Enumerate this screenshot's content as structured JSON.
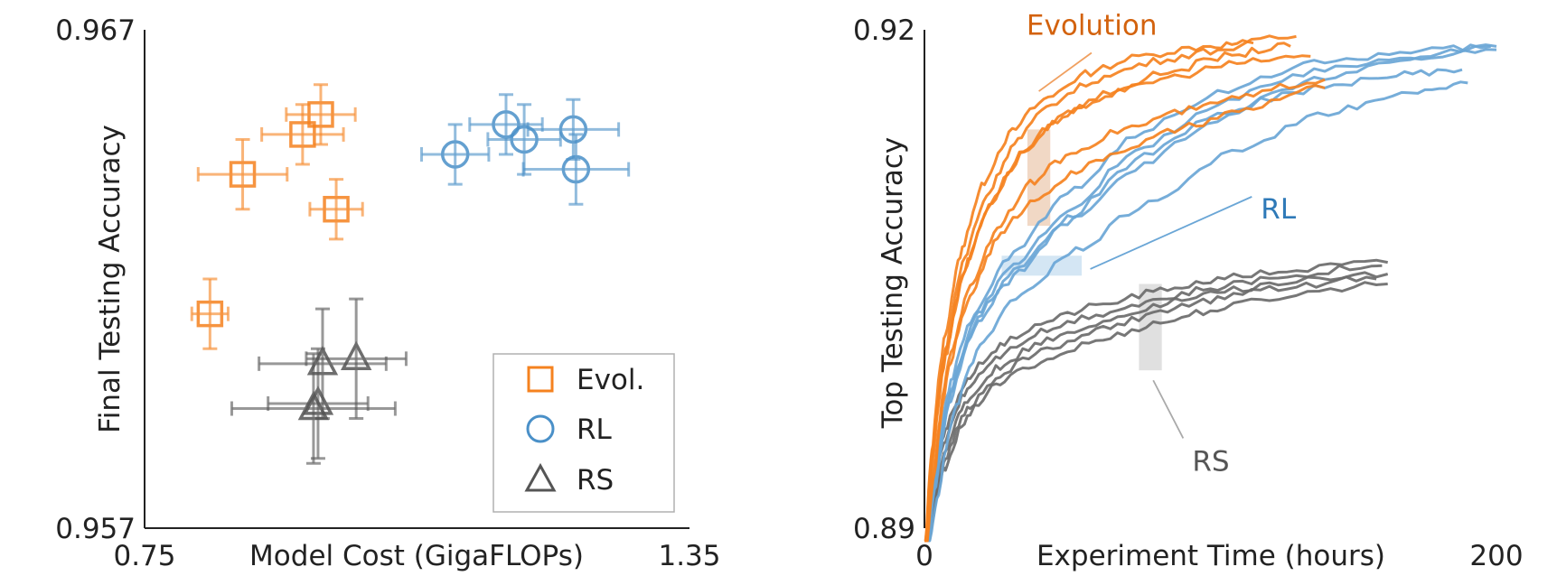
{
  "chart_data": [
    {
      "type": "scatter",
      "xlabel": "Model Cost (GigaFLOPs)",
      "ylabel": "Final Testing Accuracy",
      "xlim": [
        0.75,
        1.35
      ],
      "ylim": [
        0.957,
        0.967
      ],
      "xtick_labels": [
        "0.75",
        "1.35"
      ],
      "ytick_labels": [
        "0.957",
        "0.967"
      ],
      "grid": false,
      "legend": {
        "position": "bottom-right",
        "entries": [
          {
            "label": "Evol.",
            "marker": "square",
            "color": "#f5821f"
          },
          {
            "label": "RL",
            "marker": "circle",
            "color": "#4a90c8"
          },
          {
            "label": "RS",
            "marker": "triangle",
            "color": "#555555"
          }
        ]
      },
      "series": [
        {
          "name": "Evol.",
          "color": "#f5821f",
          "marker": "square",
          "points": [
            {
              "x": 0.822,
              "y": 0.9613,
              "xerr": 0.02,
              "yerr": 0.0007
            },
            {
              "x": 0.858,
              "y": 0.9641,
              "xerr": 0.049,
              "yerr": 0.0007
            },
            {
              "x": 0.924,
              "y": 0.9649,
              "xerr": 0.045,
              "yerr": 0.0006
            },
            {
              "x": 0.944,
              "y": 0.9653,
              "xerr": 0.038,
              "yerr": 0.0006
            },
            {
              "x": 0.961,
              "y": 0.9634,
              "xerr": 0.029,
              "yerr": 0.0006
            }
          ]
        },
        {
          "name": "RL",
          "color": "#4a90c8",
          "marker": "circle",
          "points": [
            {
              "x": 1.092,
              "y": 0.9645,
              "xerr": 0.037,
              "yerr": 0.0006
            },
            {
              "x": 1.148,
              "y": 0.9651,
              "xerr": 0.04,
              "yerr": 0.0006
            },
            {
              "x": 1.168,
              "y": 0.9648,
              "xerr": 0.04,
              "yerr": 0.0007
            },
            {
              "x": 1.222,
              "y": 0.965,
              "xerr": 0.05,
              "yerr": 0.0006
            },
            {
              "x": 1.225,
              "y": 0.9642,
              "xerr": 0.058,
              "yerr": 0.0007
            }
          ]
        },
        {
          "name": "RS",
          "color": "#555555",
          "marker": "triangle",
          "points": [
            {
              "x": 0.946,
              "y": 0.9603,
              "xerr": 0.07,
              "yerr": 0.0011
            },
            {
              "x": 0.983,
              "y": 0.9604,
              "xerr": 0.055,
              "yerr": 0.0012
            },
            {
              "x": 0.936,
              "y": 0.9594,
              "xerr": 0.09,
              "yerr": 0.0011
            },
            {
              "x": 0.941,
              "y": 0.9595,
              "xerr": 0.055,
              "yerr": 0.0011
            }
          ]
        }
      ]
    },
    {
      "type": "line",
      "xlabel": "Experiment Time (hours)",
      "ylabel": "Top Testing Accuracy",
      "xlim": [
        0,
        200
      ],
      "ylim": [
        0.89,
        0.92
      ],
      "xtick_labels": [
        "0",
        "200"
      ],
      "ytick_labels": [
        "0.89",
        "0.92"
      ],
      "grid": false,
      "annotations": [
        {
          "text": "Evolution",
          "color": "#d3620d",
          "x": 42,
          "y": 0.9197,
          "line_to": {
            "x": 40,
            "y": 0.9163
          },
          "band": {
            "x": [
              36,
              44
            ],
            "y": [
              0.9082,
              0.914
            ]
          },
          "band_color": "#f0d4bf"
        },
        {
          "text": "RL",
          "color": "#2f7ab8",
          "x": 117,
          "y": 0.9093,
          "line_to": {
            "x": 58,
            "y": 0.9056
          },
          "band": {
            "x": [
              27,
              55
            ],
            "y": [
              0.9052,
              0.9064
            ]
          },
          "band_color": "#cfe3f3"
        },
        {
          "text": "RS",
          "color": "#555555",
          "x": 93,
          "y": 0.894,
          "line_to": {
            "x": 80,
            "y": 0.8989
          },
          "band": {
            "x": [
              75,
              83
            ],
            "y": [
              0.8995,
              0.9047
            ]
          },
          "band_color": "#dddddd"
        }
      ],
      "series": [
        {
          "name": "",
          "group": "Evolution",
          "color": "#f5821f",
          "points": [
            [
              0,
              0.887
            ],
            [
              3,
              0.895
            ],
            [
              8,
              0.902
            ],
            [
              14,
              0.907
            ],
            [
              22,
              0.911
            ],
            [
              32,
              0.914
            ],
            [
              45,
              0.916
            ],
            [
              60,
              0.9175
            ],
            [
              80,
              0.9185
            ],
            [
              100,
              0.919
            ],
            [
              115,
              0.9192
            ]
          ]
        },
        {
          "name": "",
          "group": "Evolution",
          "color": "#f5821f",
          "points": [
            [
              0,
              0.8865
            ],
            [
              3,
              0.8945
            ],
            [
              8,
              0.901
            ],
            [
              15,
              0.9065
            ],
            [
              24,
              0.9105
            ],
            [
              34,
              0.9135
            ],
            [
              48,
              0.9158
            ],
            [
              65,
              0.9172
            ],
            [
              85,
              0.9182
            ],
            [
              105,
              0.9188
            ],
            [
              130,
              0.9196
            ]
          ]
        },
        {
          "name": "",
          "group": "Evolution",
          "color": "#f5821f",
          "points": [
            [
              0,
              0.886
            ],
            [
              3,
              0.894
            ],
            [
              8,
              0.9005
            ],
            [
              15,
              0.9058
            ],
            [
              25,
              0.9098
            ],
            [
              36,
              0.9128
            ],
            [
              50,
              0.9148
            ],
            [
              70,
              0.9165
            ],
            [
              90,
              0.9176
            ],
            [
              110,
              0.9185
            ],
            [
              128,
              0.919
            ]
          ]
        },
        {
          "name": "",
          "group": "Evolution",
          "color": "#f5821f",
          "points": [
            [
              0,
              0.8868
            ],
            [
              3,
              0.8948
            ],
            [
              9,
              0.9015
            ],
            [
              16,
              0.9062
            ],
            [
              26,
              0.9102
            ],
            [
              38,
              0.913
            ],
            [
              52,
              0.915
            ],
            [
              70,
              0.9163
            ],
            [
              90,
              0.9172
            ],
            [
              112,
              0.918
            ],
            [
              135,
              0.9184
            ]
          ]
        },
        {
          "name": "",
          "group": "Evolution",
          "color": "#f5821f",
          "points": [
            [
              0,
              0.8862
            ],
            [
              4,
              0.8942
            ],
            [
              10,
              0.9008
            ],
            [
              18,
              0.905
            ],
            [
              28,
              0.9085
            ],
            [
              40,
              0.911
            ],
            [
              55,
              0.9128
            ],
            [
              75,
              0.9142
            ],
            [
              95,
              0.9152
            ],
            [
              115,
              0.916
            ],
            [
              140,
              0.917
            ]
          ]
        },
        {
          "name": "",
          "group": "Evolution",
          "color": "#f5821f",
          "points": [
            [
              0,
              0.8858
            ],
            [
              4,
              0.8938
            ],
            [
              10,
              0.9003
            ],
            [
              18,
              0.9045
            ],
            [
              28,
              0.9078
            ],
            [
              40,
              0.9098
            ],
            [
              55,
              0.9115
            ],
            [
              75,
              0.913
            ],
            [
              95,
              0.9142
            ],
            [
              115,
              0.9152
            ],
            [
              140,
              0.9165
            ]
          ]
        },
        {
          "name": "",
          "group": "RL",
          "color": "#6aa6d6",
          "points": [
            [
              0,
              0.886
            ],
            [
              4,
              0.893
            ],
            [
              10,
              0.899
            ],
            [
              20,
              0.9035
            ],
            [
              35,
              0.907
            ],
            [
              55,
              0.9105
            ],
            [
              80,
              0.914
            ],
            [
              110,
              0.9165
            ],
            [
              140,
              0.918
            ],
            [
              170,
              0.9186
            ],
            [
              200,
              0.919
            ]
          ]
        },
        {
          "name": "",
          "group": "RL",
          "color": "#6aa6d6",
          "points": [
            [
              0,
              0.8858
            ],
            [
              4,
              0.8928
            ],
            [
              10,
              0.8985
            ],
            [
              20,
              0.903
            ],
            [
              35,
              0.9062
            ],
            [
              55,
              0.9095
            ],
            [
              80,
              0.913
            ],
            [
              110,
              0.9158
            ],
            [
              140,
              0.9175
            ],
            [
              170,
              0.9183
            ],
            [
              200,
              0.9188
            ]
          ]
        },
        {
          "name": "",
          "group": "RL",
          "color": "#6aa6d6",
          "points": [
            [
              0,
              0.8855
            ],
            [
              4,
              0.8925
            ],
            [
              10,
              0.898
            ],
            [
              20,
              0.9025
            ],
            [
              35,
              0.9055
            ],
            [
              55,
              0.9088
            ],
            [
              80,
              0.912
            ],
            [
              110,
              0.915
            ],
            [
              140,
              0.917
            ],
            [
              170,
              0.9182
            ],
            [
              198,
              0.919
            ]
          ]
        },
        {
          "name": "",
          "group": "RL",
          "color": "#6aa6d6",
          "points": [
            [
              0,
              0.8857
            ],
            [
              4,
              0.8927
            ],
            [
              10,
              0.8983
            ],
            [
              20,
              0.9028
            ],
            [
              35,
              0.9058
            ],
            [
              55,
              0.909
            ],
            [
              80,
              0.9125
            ],
            [
              110,
              0.9152
            ],
            [
              140,
              0.9165
            ],
            [
              165,
              0.9172
            ],
            [
              188,
              0.9176
            ]
          ]
        },
        {
          "name": "",
          "group": "RL",
          "color": "#6aa6d6",
          "points": [
            [
              0,
              0.8853
            ],
            [
              5,
              0.892
            ],
            [
              12,
              0.8975
            ],
            [
              22,
              0.9015
            ],
            [
              38,
              0.9045
            ],
            [
              58,
              0.907
            ],
            [
              85,
              0.91
            ],
            [
              115,
              0.913
            ],
            [
              145,
              0.915
            ],
            [
              170,
              0.9162
            ],
            [
              190,
              0.9168
            ]
          ]
        },
        {
          "name": "",
          "group": "RS",
          "color": "#6b6b6b",
          "points": [
            [
              0,
              0.886
            ],
            [
              3,
              0.892
            ],
            [
              8,
              0.896
            ],
            [
              16,
              0.899
            ],
            [
              28,
              0.901
            ],
            [
              45,
              0.9025
            ],
            [
              65,
              0.9035
            ],
            [
              85,
              0.9043
            ],
            [
              105,
              0.905
            ],
            [
              130,
              0.9055
            ],
            [
              162,
              0.906
            ]
          ]
        },
        {
          "name": "",
          "group": "RS",
          "color": "#6b6b6b",
          "points": [
            [
              0,
              0.8858
            ],
            [
              3,
              0.8918
            ],
            [
              8,
              0.8955
            ],
            [
              16,
              0.8985
            ],
            [
              28,
              0.9005
            ],
            [
              45,
              0.902
            ],
            [
              65,
              0.903
            ],
            [
              85,
              0.9038
            ],
            [
              105,
              0.9045
            ],
            [
              130,
              0.9052
            ],
            [
              160,
              0.9058
            ]
          ]
        },
        {
          "name": "",
          "group": "RS",
          "color": "#6b6b6b",
          "points": [
            [
              0,
              0.8855
            ],
            [
              3,
              0.8912
            ],
            [
              8,
              0.8948
            ],
            [
              16,
              0.8978
            ],
            [
              28,
              0.8998
            ],
            [
              45,
              0.9013
            ],
            [
              65,
              0.9025
            ],
            [
              85,
              0.9035
            ],
            [
              105,
              0.9042
            ],
            [
              130,
              0.9048
            ],
            [
              162,
              0.9053
            ]
          ]
        },
        {
          "name": "",
          "group": "RS",
          "color": "#6b6b6b",
          "points": [
            [
              0,
              0.8853
            ],
            [
              3,
              0.8908
            ],
            [
              8,
              0.8942
            ],
            [
              16,
              0.8972
            ],
            [
              28,
              0.8993
            ],
            [
              45,
              0.9008
            ],
            [
              65,
              0.902
            ],
            [
              85,
              0.903
            ],
            [
              105,
              0.9038
            ],
            [
              130,
              0.9045
            ],
            [
              158,
              0.905
            ]
          ]
        },
        {
          "name": "",
          "group": "RS",
          "color": "#6b6b6b",
          "points": [
            [
              0,
              0.885
            ],
            [
              3,
              0.8905
            ],
            [
              8,
              0.8938
            ],
            [
              16,
              0.8968
            ],
            [
              28,
              0.8988
            ],
            [
              45,
              0.9002
            ],
            [
              65,
              0.9014
            ],
            [
              85,
              0.9024
            ],
            [
              105,
              0.9032
            ],
            [
              130,
              0.904
            ],
            [
              162,
              0.9047
            ]
          ]
        }
      ]
    }
  ]
}
